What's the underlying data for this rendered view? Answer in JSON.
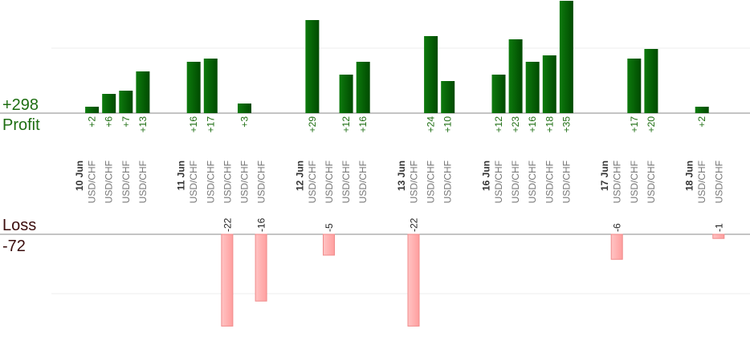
{
  "summary": {
    "profit_total": "+298",
    "profit_label": "Profit",
    "loss_label": "Loss",
    "loss_total": "-72"
  },
  "colors": {
    "profit_bar": "#0a6a0a",
    "profit_text": "#1e6e12",
    "loss_bar": "#ffb3b3",
    "loss_text": "#3b0d0d"
  },
  "chart_data": {
    "type": "bar",
    "title": "",
    "xlabel": "",
    "ylabel": "",
    "profit_ylim": [
      0,
      29
    ],
    "loss_ylim": [
      -22,
      0
    ],
    "grid": true,
    "days": [
      {
        "label": "10 Jun",
        "trades": [
          {
            "pair": "USD/CHF",
            "value": 2
          },
          {
            "pair": "USD/CHF",
            "value": 6
          },
          {
            "pair": "USD/CHF",
            "value": 7
          },
          {
            "pair": "USD/CHF",
            "value": 13
          }
        ]
      },
      {
        "label": "11 Jun",
        "trades": [
          {
            "pair": "USD/CHF",
            "value": 16
          },
          {
            "pair": "USD/CHF",
            "value": 17
          },
          {
            "pair": "USD/CHF",
            "value": -22
          },
          {
            "pair": "USD/CHF",
            "value": 3
          },
          {
            "pair": "USD/CHF",
            "value": -16
          }
        ]
      },
      {
        "label": "12 Jun",
        "trades": [
          {
            "pair": "USD/CHF",
            "value": 29
          },
          {
            "pair": "USD/CHF",
            "value": -5
          },
          {
            "pair": "USD/CHF",
            "value": 12
          },
          {
            "pair": "USD/CHF",
            "value": 16
          }
        ]
      },
      {
        "label": "13 Jun",
        "trades": [
          {
            "pair": "USD/CHF",
            "value": -22
          },
          {
            "pair": "USD/CHF",
            "value": 24
          },
          {
            "pair": "USD/CHF",
            "value": 10
          }
        ]
      },
      {
        "label": "16 Jun",
        "trades": [
          {
            "pair": "USD/CHF",
            "value": 12
          },
          {
            "pair": "USD/CHF",
            "value": 23
          },
          {
            "pair": "USD/CHF",
            "value": 16
          },
          {
            "pair": "USD/CHF",
            "value": 18
          },
          {
            "pair": "USD/CHF",
            "value": 35
          }
        ]
      },
      {
        "label": "17 Jun",
        "trades": [
          {
            "pair": "USD/CHF",
            "value": -6
          },
          {
            "pair": "USD/CHF",
            "value": 17
          },
          {
            "pair": "USD/CHF",
            "value": 20
          }
        ]
      },
      {
        "label": "18 Jun",
        "trades": [
          {
            "pair": "USD/CHF",
            "value": 2
          },
          {
            "pair": "USD/CHF",
            "value": -1
          }
        ]
      }
    ]
  }
}
